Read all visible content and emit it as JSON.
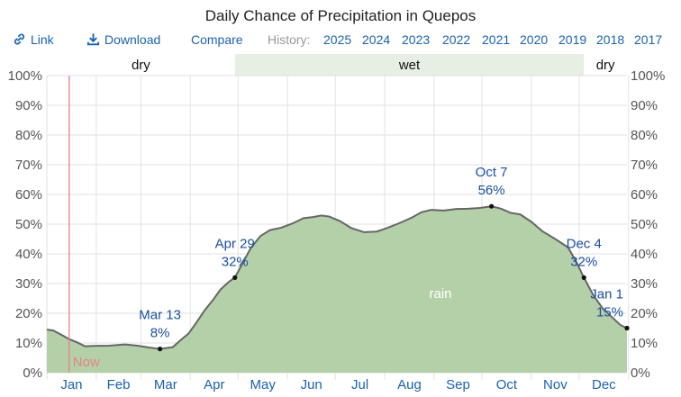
{
  "page": {
    "title": "Daily Chance of Precipitation in Quepos"
  },
  "toolbar": {
    "link_label": "Link",
    "link_icon": "link-icon",
    "download_label": "Download",
    "download_icon": "download-icon",
    "compare_label": "Compare",
    "history_label": "History:",
    "years": [
      "2025",
      "2024",
      "2023",
      "2022",
      "2021",
      "2020",
      "2019",
      "2018",
      "2017"
    ]
  },
  "chart_data": {
    "type": "area",
    "x_unit": "day of year",
    "ylim": [
      0,
      100
    ],
    "y_ticks": [
      "0%",
      "10%",
      "20%",
      "30%",
      "40%",
      "50%",
      "60%",
      "70%",
      "80%",
      "90%",
      "100%"
    ],
    "months": [
      "Jan",
      "Feb",
      "Mar",
      "Apr",
      "May",
      "Jun",
      "Jul",
      "Aug",
      "Sep",
      "Oct",
      "Nov",
      "Dec"
    ],
    "grid": true,
    "seasons": [
      {
        "label": "dry",
        "start_day": 1,
        "end_day": 119
      },
      {
        "label": "wet",
        "start_day": 119,
        "end_day": 338
      },
      {
        "label": "dry",
        "start_day": 338,
        "end_day": 365
      }
    ],
    "series": [
      {
        "name": "rain",
        "color": "#b3d0a9",
        "line_color": "#666666",
        "points": [
          {
            "day": 1,
            "value": 14.5
          },
          {
            "day": 5,
            "value": 14.2
          },
          {
            "day": 10,
            "value": 12.8
          },
          {
            "day": 15,
            "value": 11.3
          },
          {
            "day": 20,
            "value": 10.2
          },
          {
            "day": 25,
            "value": 8.9
          },
          {
            "day": 30,
            "value": 9.0
          },
          {
            "day": 40,
            "value": 9.1
          },
          {
            "day": 50,
            "value": 9.5
          },
          {
            "day": 58,
            "value": 9.1
          },
          {
            "day": 65,
            "value": 8.5
          },
          {
            "day": 72,
            "value": 8.0
          },
          {
            "day": 80,
            "value": 8.6
          },
          {
            "day": 85,
            "value": 11.0
          },
          {
            "day": 90,
            "value": 13.2
          },
          {
            "day": 95,
            "value": 17.0
          },
          {
            "day": 100,
            "value": 21.0
          },
          {
            "day": 105,
            "value": 24.3
          },
          {
            "day": 110,
            "value": 28.0
          },
          {
            "day": 115,
            "value": 30.5
          },
          {
            "day": 119,
            "value": 32.0
          },
          {
            "day": 124,
            "value": 37.0
          },
          {
            "day": 129,
            "value": 42.0
          },
          {
            "day": 135,
            "value": 46.0
          },
          {
            "day": 141,
            "value": 48.0
          },
          {
            "day": 148,
            "value": 48.8
          },
          {
            "day": 155,
            "value": 50.2
          },
          {
            "day": 162,
            "value": 52.0
          },
          {
            "day": 168,
            "value": 52.4
          },
          {
            "day": 173,
            "value": 52.9
          },
          {
            "day": 178,
            "value": 52.6
          },
          {
            "day": 185,
            "value": 51.0
          },
          {
            "day": 192,
            "value": 48.7
          },
          {
            "day": 200,
            "value": 47.3
          },
          {
            "day": 208,
            "value": 47.5
          },
          {
            "day": 215,
            "value": 48.8
          },
          {
            "day": 222,
            "value": 50.3
          },
          {
            "day": 230,
            "value": 52.2
          },
          {
            "day": 236,
            "value": 54.0
          },
          {
            "day": 242,
            "value": 54.8
          },
          {
            "day": 250,
            "value": 54.6
          },
          {
            "day": 258,
            "value": 55.1
          },
          {
            "day": 265,
            "value": 55.2
          },
          {
            "day": 272,
            "value": 55.4
          },
          {
            "day": 280,
            "value": 56.0
          },
          {
            "day": 286,
            "value": 55.2
          },
          {
            "day": 292,
            "value": 53.8
          },
          {
            "day": 298,
            "value": 53.3
          },
          {
            "day": 305,
            "value": 50.8
          },
          {
            "day": 312,
            "value": 47.6
          },
          {
            "day": 320,
            "value": 45.0
          },
          {
            "day": 328,
            "value": 42.2
          },
          {
            "day": 333,
            "value": 37.5
          },
          {
            "day": 338,
            "value": 32.0
          },
          {
            "day": 344,
            "value": 26.0
          },
          {
            "day": 350,
            "value": 21.5
          },
          {
            "day": 356,
            "value": 18.5
          },
          {
            "day": 361,
            "value": 16.0
          },
          {
            "day": 365,
            "value": 15.0
          }
        ]
      }
    ],
    "series_label": "rain",
    "annotations": [
      {
        "date": "Mar 13",
        "day": 72,
        "value": 8,
        "label": "8%"
      },
      {
        "date": "Apr 29",
        "day": 119,
        "value": 32,
        "label": "32%"
      },
      {
        "date": "Oct 7",
        "day": 280,
        "value": 56,
        "label": "56%"
      },
      {
        "date": "Dec 4",
        "day": 338,
        "value": 32,
        "label": "32%"
      },
      {
        "date": "Jan 1",
        "day": 365,
        "value": 15,
        "label": "15%"
      }
    ],
    "now_marker": {
      "day": 15,
      "label": "Now",
      "color": "#e8808a"
    }
  }
}
